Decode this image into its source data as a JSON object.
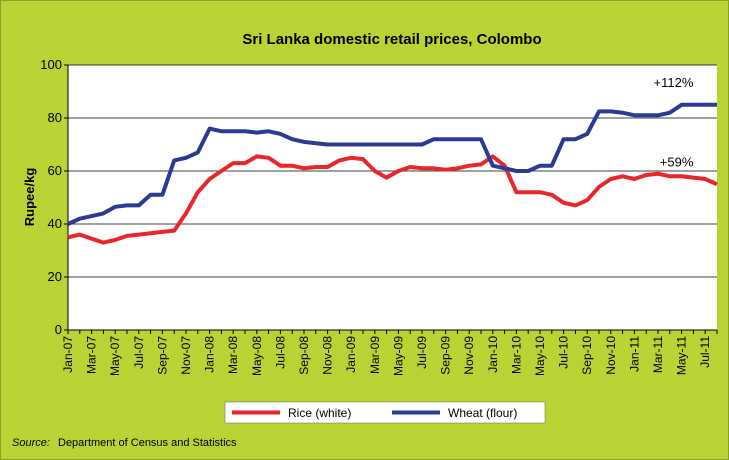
{
  "chart_data": {
    "type": "line",
    "title": "Sri Lanka domestic retail prices, Colombo",
    "ylabel": "Rupee/kg",
    "categories": [
      "Jan-07",
      null,
      "Mar-07",
      null,
      "May-07",
      null,
      "Jul-07",
      null,
      "Sep-07",
      null,
      "Nov-07",
      null,
      "Jan-08",
      null,
      "Mar-08",
      null,
      "May-08",
      null,
      "Jul-08",
      null,
      "Sep-08",
      null,
      "Nov-08",
      null,
      "Jan-09",
      null,
      "Mar-09",
      null,
      "May-09",
      null,
      "Jul-09",
      null,
      "Sep-09",
      null,
      "Nov-09",
      null,
      "Jan-10",
      null,
      "Mar-10",
      null,
      "May-10",
      null,
      "Jul-10",
      null,
      "Sep-10",
      null,
      "Nov-10",
      null,
      "Jan-11",
      null,
      "Mar-11",
      null,
      "May-11",
      null,
      "Jul-11",
      null
    ],
    "series": [
      {
        "name": "Rice (white)",
        "color": "#e8262b",
        "values": [
          35,
          36,
          34.5,
          33,
          34,
          35.5,
          36,
          36.5,
          37,
          37.5,
          44,
          52,
          57,
          60,
          63,
          63,
          65.5,
          65,
          62,
          62,
          61,
          61.5,
          61.5,
          64,
          65,
          64.5,
          60,
          57.5,
          60,
          61.5,
          61,
          61,
          60.5,
          61,
          62,
          62.5,
          65.5,
          62,
          52,
          52,
          52,
          51,
          48,
          47,
          49,
          54,
          57,
          58,
          57,
          58.5,
          59,
          58,
          58,
          57.5,
          57,
          55
        ]
      },
      {
        "name": "Wheat (flour)",
        "color": "#2b3a93",
        "values": [
          40,
          42,
          43,
          44,
          46.5,
          47,
          47,
          51,
          51,
          64,
          65,
          67,
          76,
          75,
          75,
          75,
          74.5,
          75,
          74,
          72,
          71,
          70.5,
          70,
          70,
          70,
          70,
          70,
          70,
          70,
          70,
          70,
          72,
          72,
          72,
          72,
          72,
          62,
          61,
          60,
          60,
          62,
          62,
          72,
          72,
          74,
          82.5,
          82.5,
          82,
          81,
          81,
          81,
          82,
          85,
          85,
          85,
          85
        ]
      }
    ],
    "annotations": [
      "+59%",
      "+112%"
    ],
    "ylim": [
      0,
      100
    ],
    "yticks": [
      0,
      20,
      40,
      60,
      80,
      100
    ],
    "grid": true,
    "source_label": "Source:",
    "source": "Department of Census and Statistics"
  }
}
